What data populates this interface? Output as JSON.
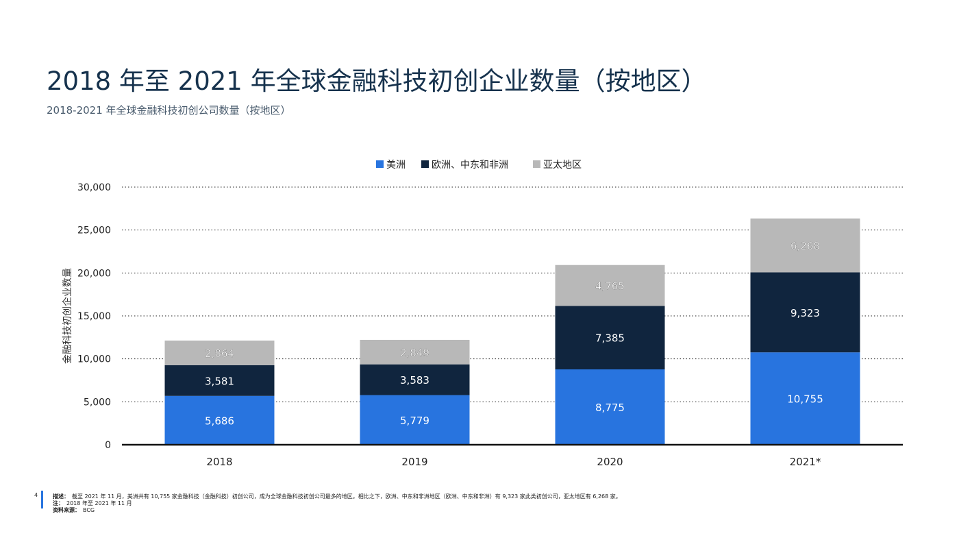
{
  "page": {
    "title": "2018 年至 2021 年全球金融科技初创企业数量（按地区）",
    "subtitle": "2018-2021 年全球金融科技初创公司数量（按地区）"
  },
  "chart_data": {
    "type": "bar",
    "stacked": true,
    "categories": [
      "2018",
      "2019",
      "2020",
      "2021*"
    ],
    "series": [
      {
        "name": "美洲",
        "color": "#2874df",
        "values": [
          5686,
          5779,
          8775,
          10755
        ],
        "labels": [
          "5,686",
          "5,779",
          "8,775",
          "10,755"
        ]
      },
      {
        "name": "欧洲、中东和非洲",
        "color": "#10253e",
        "values": [
          3581,
          3583,
          7385,
          9323
        ],
        "labels": [
          "3,581",
          "3,583",
          "7,385",
          "9,323"
        ]
      },
      {
        "name": "亚太地区",
        "color": "#b8b8b8",
        "values": [
          2864,
          2849,
          4765,
          6268
        ],
        "labels": [
          "2,864",
          "2,849",
          "4,765",
          "6,268"
        ]
      }
    ],
    "ylabel": "金融科技初创企业数量",
    "xlabel": "",
    "ylim": [
      0,
      30000
    ],
    "yticks": [
      0,
      5000,
      10000,
      15000,
      20000,
      25000,
      30000
    ],
    "ytick_labels": [
      "0",
      "5,000",
      "10,000",
      "15,000",
      "20,000",
      "25,000",
      "30,000"
    ],
    "grid": true,
    "legend_position": "top-center"
  },
  "footer": {
    "page_number": "4",
    "desc_label": "描述：",
    "desc_text": "截至 2021 年 11 月，美洲共有 10,755 家金融科技（金融科技）初创公司，成为全球金融科技初创公司最多的地区。相比之下，欧洲、中东和非洲地区（欧洲、中东和非洲）有 9,323 家此类初创公司，亚太地区有 6,268 家。",
    "note_label": "注：",
    "note_text": "2018 年至 2021 年 11 月",
    "source_label": "资料来源：",
    "source_text": "BCG"
  }
}
